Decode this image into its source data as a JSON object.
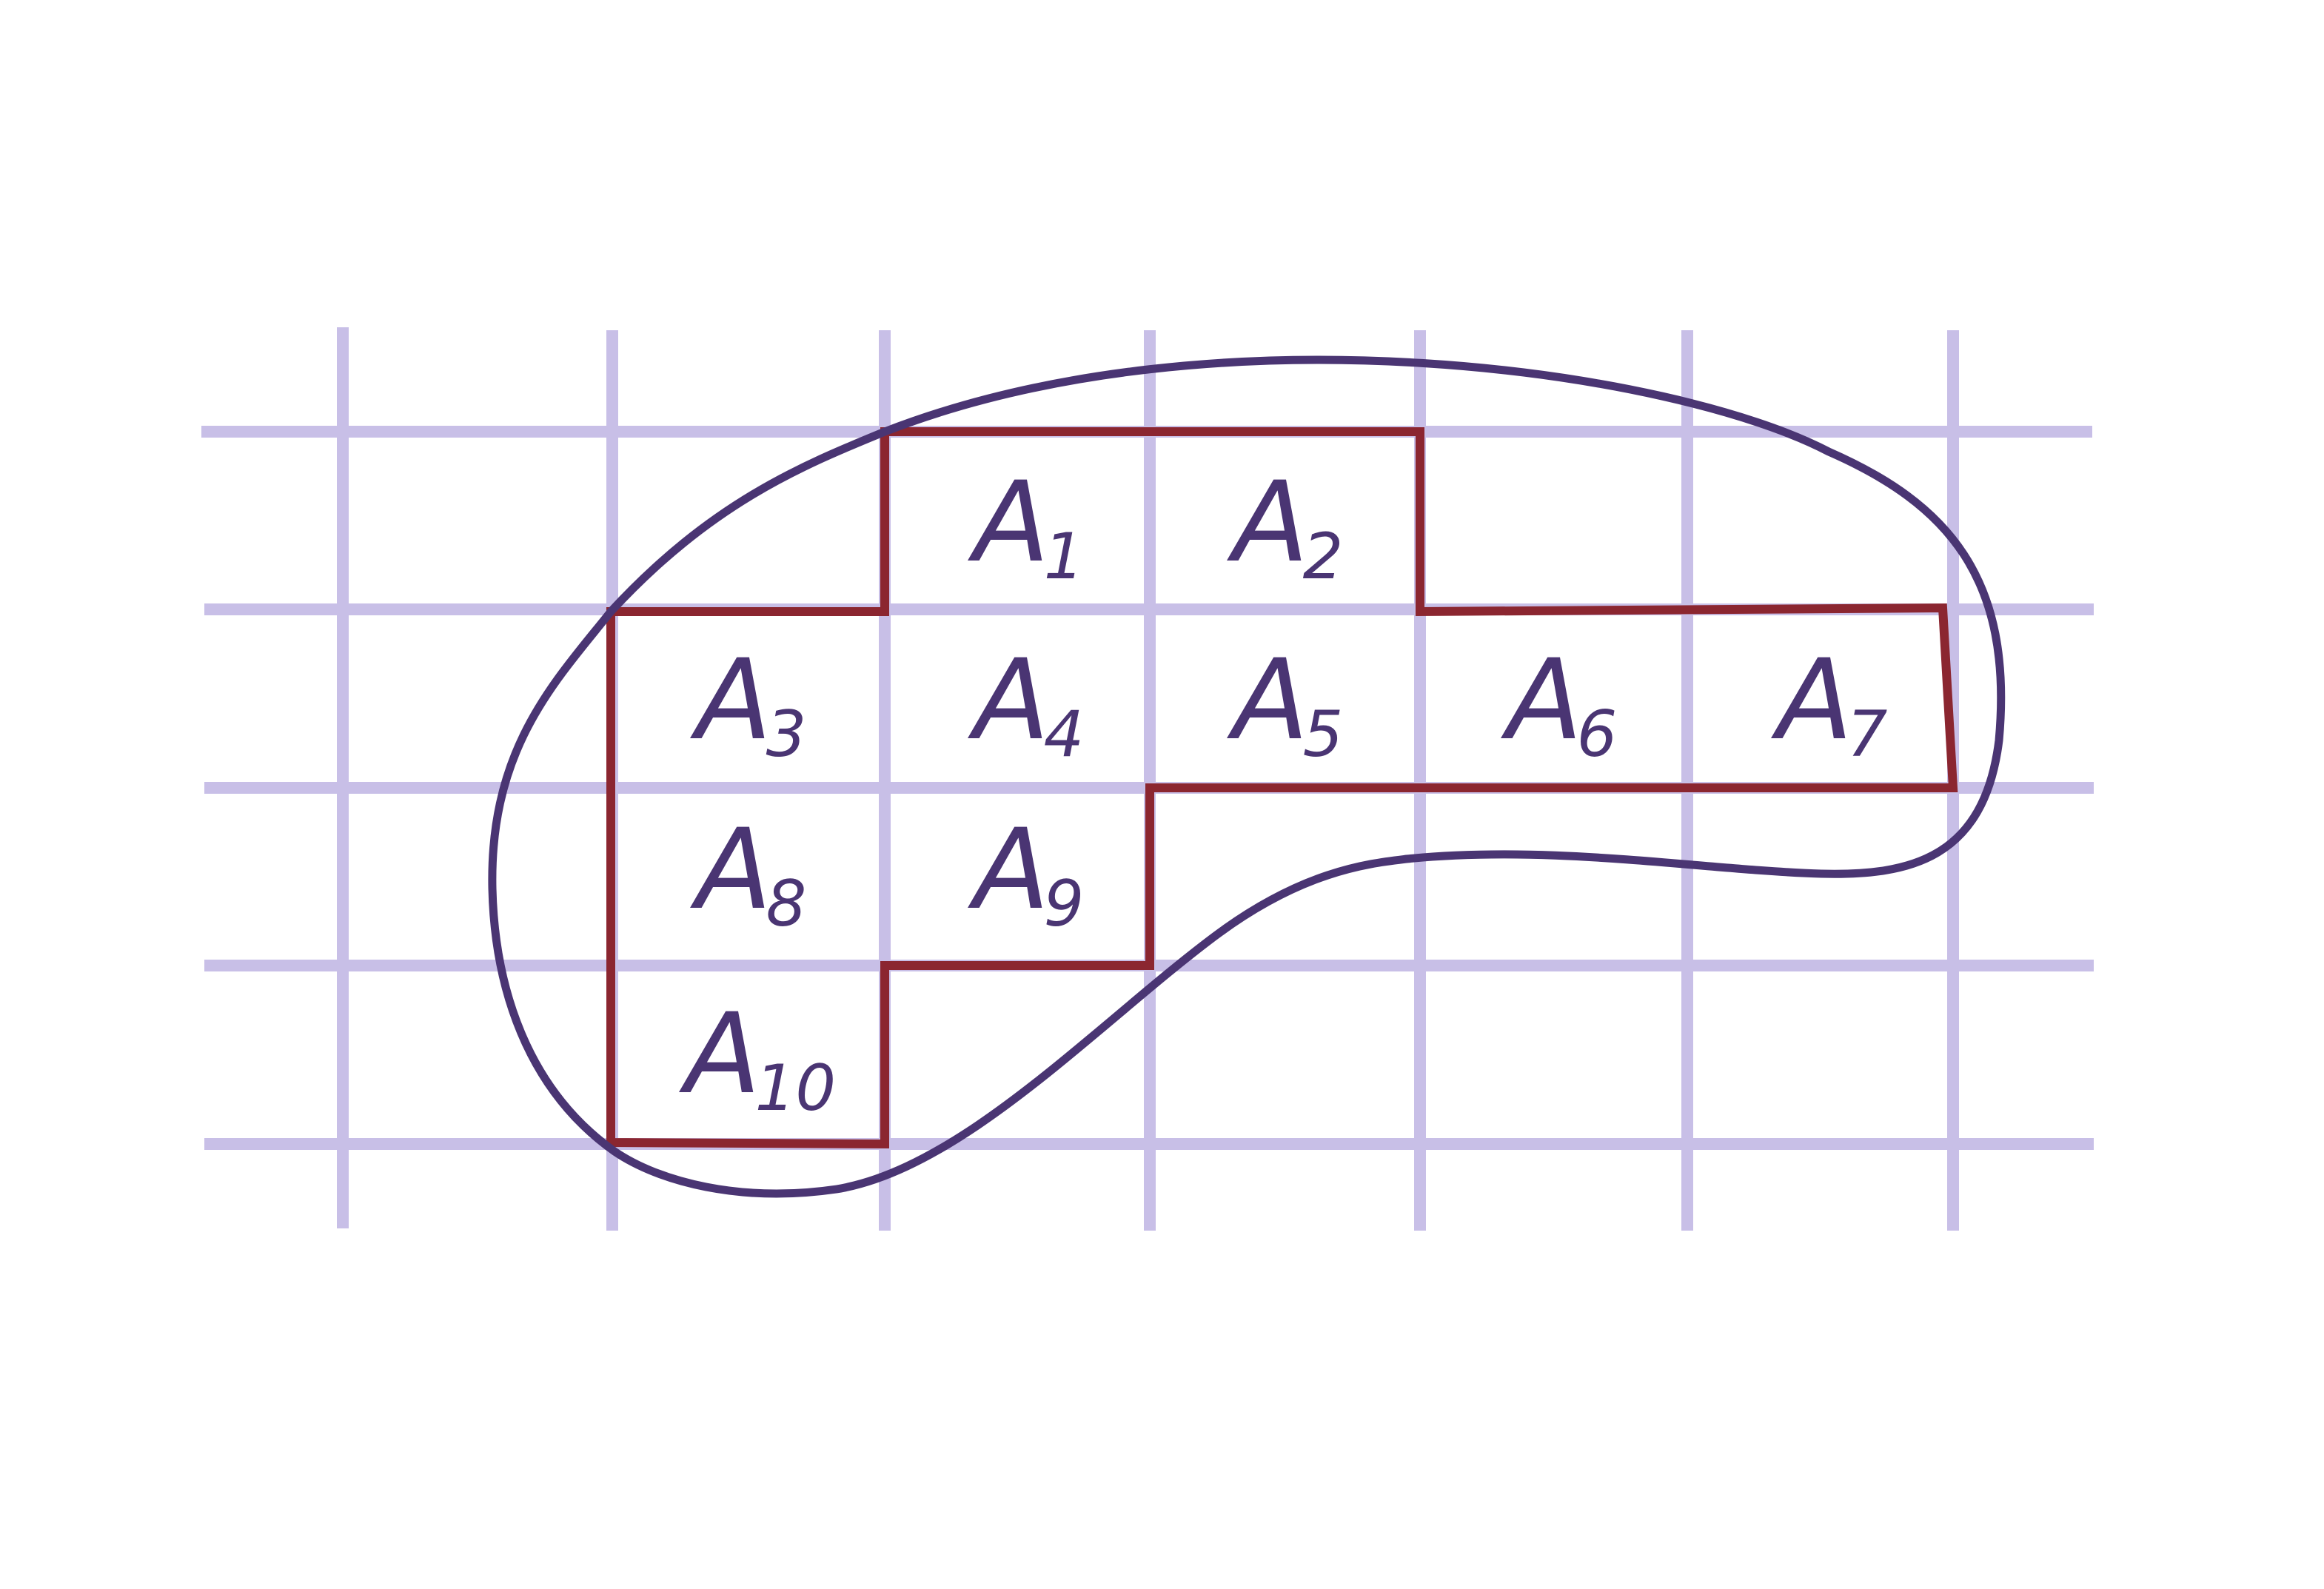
{
  "colors": {
    "grid": "#c8bfe7",
    "region_outline": "#8b2630",
    "blob_outline": "#4a3573",
    "label": "#4a3573",
    "background": "#ffffff"
  },
  "cells": [
    {
      "id": "A1",
      "base": "A",
      "sub": "1"
    },
    {
      "id": "A2",
      "base": "A",
      "sub": "2"
    },
    {
      "id": "A3",
      "base": "A",
      "sub": "3"
    },
    {
      "id": "A4",
      "base": "A",
      "sub": "4"
    },
    {
      "id": "A5",
      "base": "A",
      "sub": "5"
    },
    {
      "id": "A6",
      "base": "A",
      "sub": "6"
    },
    {
      "id": "A7",
      "base": "A",
      "sub": "7"
    },
    {
      "id": "A8",
      "base": "A",
      "sub": "8"
    },
    {
      "id": "A9",
      "base": "A",
      "sub": "9"
    },
    {
      "id": "A10",
      "base": "A",
      "sub": "10"
    }
  ]
}
